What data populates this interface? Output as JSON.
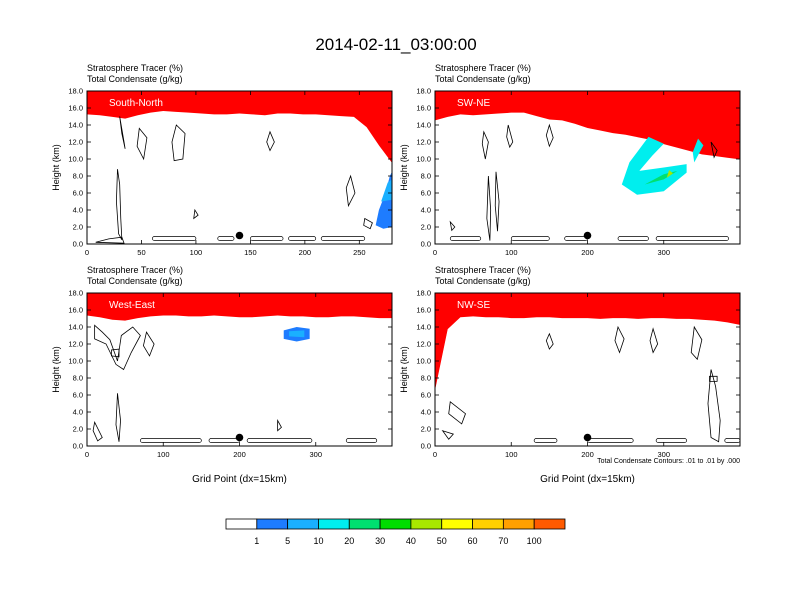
{
  "title": "2014-02-11_03:00:00",
  "colors": {
    "levels": [
      "#ffffff",
      "#1e7cff",
      "#1ab0ff",
      "#00eeee",
      "#00e070",
      "#00dd00",
      "#a8e800",
      "#ffff00",
      "#ffd000",
      "#ffa000",
      "#ff5a00",
      "#ff0000"
    ],
    "contour": "#000000",
    "marker": "#000000"
  },
  "colorbar": {
    "labels": [
      "1",
      "5",
      "10",
      "20",
      "30",
      "40",
      "50",
      "60",
      "70",
      "100"
    ]
  },
  "footnote": "Total Condensate Contours: .01 to .01 by .000",
  "chart_data": [
    {
      "type": "heatmap",
      "panel_label": "South-North",
      "left_title_line1": "Stratosphere Tracer   (%)",
      "left_title_line2": "Total Condensate   (g/kg)",
      "ylabel": "Height (km)",
      "xlabel": "",
      "xlim": [
        0,
        280
      ],
      "ylim": [
        0,
        18
      ],
      "xticks": [
        "0",
        "50",
        "100",
        "150",
        "200",
        "250"
      ],
      "xtick_values": [
        0,
        50,
        100,
        150,
        200,
        250
      ],
      "yticks": [
        "0.0",
        "2.0",
        "4.0",
        "6.0",
        "8.0",
        "10.0",
        "12.0",
        "14.0",
        "16.0",
        "18.0"
      ],
      "ytick_values": [
        0,
        2,
        4,
        6,
        8,
        10,
        12,
        14,
        16,
        18
      ],
      "tropopause_km": [
        15.7,
        15.6,
        15.4,
        15.2,
        15.6,
        15.9,
        16.1,
        16.0,
        15.9,
        15.8,
        15.7,
        15.7,
        15.8,
        15.7,
        15.6,
        15.8,
        15.8,
        15.7,
        15.7,
        15.6,
        15.5,
        15.4,
        14.2,
        12.0,
        10.0
      ],
      "marker": {
        "x": 140,
        "y": 1.0
      }
    },
    {
      "type": "heatmap",
      "panel_label": "SW-NE",
      "left_title_line1": "Stratosphere Tracer   (%)",
      "left_title_line2": "Total Condensate   (g/kg)",
      "ylabel": "Height (km)",
      "xlabel": "",
      "xlim": [
        0,
        400
      ],
      "ylim": [
        0,
        18
      ],
      "xticks": [
        "0",
        "100",
        "200",
        "300"
      ],
      "xtick_values": [
        0,
        100,
        200,
        300
      ],
      "yticks": [
        "0.0",
        "2.0",
        "4.0",
        "6.0",
        "8.0",
        "10.0",
        "12.0",
        "14.0",
        "16.0",
        "18.0"
      ],
      "ytick_values": [
        0,
        2,
        4,
        6,
        8,
        10,
        12,
        14,
        16,
        18
      ],
      "tropopause_km": [
        15.0,
        15.4,
        15.7,
        15.6,
        15.7,
        15.8,
        15.9,
        15.9,
        15.5,
        15.1,
        15.0,
        14.6,
        14.1,
        13.8,
        13.5,
        13.3,
        13.0,
        12.7,
        12.2,
        11.8,
        11.4,
        11.0,
        10.8,
        10.6,
        10.4
      ],
      "marker": {
        "x": 200,
        "y": 1.0
      }
    },
    {
      "type": "heatmap",
      "panel_label": "West-East",
      "left_title_line1": "Stratosphere Tracer   (%)",
      "left_title_line2": "Total Condensate   (g/kg)",
      "ylabel": "Height (km)",
      "xlabel": "Grid Point (dx=15km)",
      "xlim": [
        0,
        400
      ],
      "ylim": [
        0,
        18
      ],
      "xticks": [
        "0",
        "100",
        "200",
        "300"
      ],
      "xtick_values": [
        0,
        100,
        200,
        300
      ],
      "yticks": [
        "0.0",
        "2.0",
        "4.0",
        "6.0",
        "8.0",
        "10.0",
        "12.0",
        "14.0",
        "16.0",
        "18.0"
      ],
      "ytick_values": [
        0,
        2,
        4,
        6,
        8,
        10,
        12,
        14,
        16,
        18
      ],
      "tropopause_km": [
        15.8,
        15.6,
        15.3,
        15.2,
        15.5,
        15.7,
        15.8,
        15.8,
        15.7,
        15.7,
        15.8,
        15.7,
        15.6,
        15.6,
        15.7,
        15.8,
        15.7,
        15.7,
        15.6,
        15.6,
        15.7,
        15.7,
        15.6,
        15.5,
        15.5
      ],
      "marker": {
        "x": 200,
        "y": 1.0
      }
    },
    {
      "type": "heatmap",
      "panel_label": "NW-SE",
      "left_title_line1": "Stratosphere Tracer   (%)",
      "left_title_line2": "Total Condensate   (g/kg)",
      "ylabel": "Height (km)",
      "xlabel": "Grid Point (dx=15km)",
      "xlim": [
        0,
        400
      ],
      "ylim": [
        0,
        18
      ],
      "xticks": [
        "0",
        "100",
        "200",
        "300"
      ],
      "xtick_values": [
        0,
        100,
        200,
        300
      ],
      "yticks": [
        "0.0",
        "2.0",
        "4.0",
        "6.0",
        "8.0",
        "10.0",
        "12.0",
        "14.0",
        "16.0",
        "18.0"
      ],
      "ytick_values": [
        0,
        2,
        4,
        6,
        8,
        10,
        12,
        14,
        16,
        18
      ],
      "tropopause_km": [
        7.0,
        14.2,
        15.6,
        15.7,
        15.6,
        15.6,
        15.5,
        15.5,
        15.6,
        15.6,
        15.5,
        15.5,
        15.5,
        15.4,
        15.5,
        15.5,
        15.4,
        15.5,
        15.5,
        15.4,
        15.4,
        15.3,
        15.2,
        15.0,
        14.7
      ],
      "marker": {
        "x": 200,
        "y": 1.0
      }
    }
  ]
}
